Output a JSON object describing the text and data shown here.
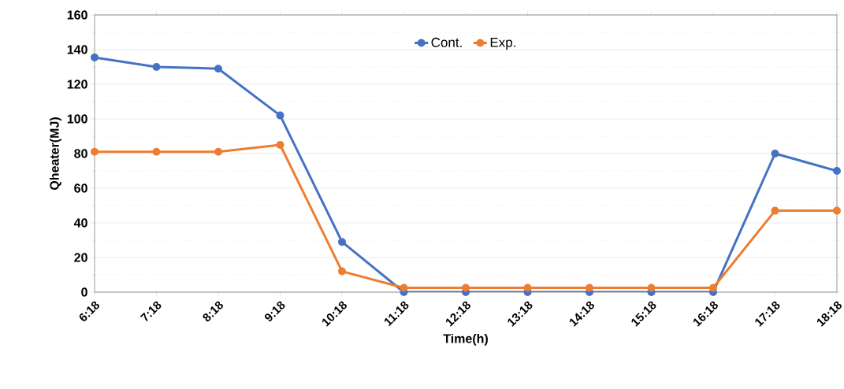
{
  "chart_data": {
    "type": "line",
    "xlabel": "Time(h)",
    "ylabel": "Qheater(MJ)",
    "categories": [
      "6:18",
      "7:18",
      "8:18",
      "9:18",
      "10:18",
      "11:18",
      "12:18",
      "13:18",
      "14:18",
      "15:18",
      "16:18",
      "17:18",
      "18:18"
    ],
    "series": [
      {
        "name": "Cont.",
        "color": "#4472c4",
        "values": [
          135.5,
          130,
          129,
          102,
          29,
          0,
          0,
          0,
          0,
          0,
          0,
          80,
          70
        ]
      },
      {
        "name": "Exp.",
        "color": "#ed7d31",
        "values": [
          81,
          81,
          81,
          85,
          12,
          2.5,
          2.5,
          2.5,
          2.5,
          2.5,
          2.5,
          47,
          47
        ]
      }
    ],
    "ylim": [
      0,
      160
    ],
    "yticks": [
      0,
      20,
      40,
      60,
      80,
      100,
      120,
      140,
      160
    ],
    "grid": "y",
    "legend": "top",
    "marker": "circle",
    "line_style": "solid"
  }
}
